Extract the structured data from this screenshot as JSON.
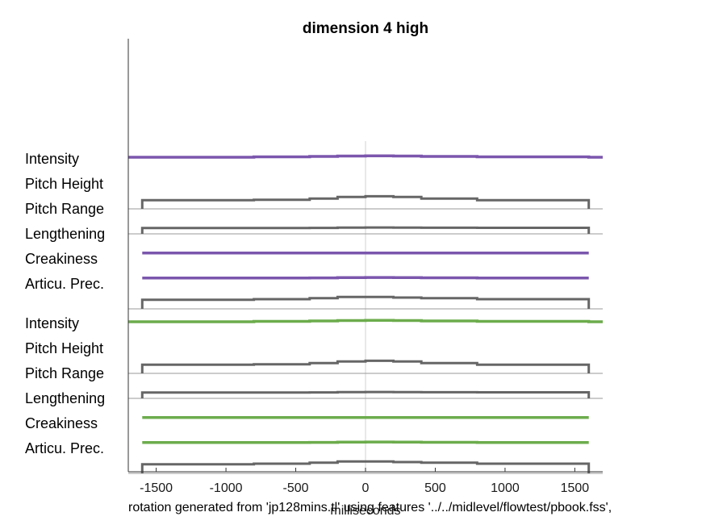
{
  "chart_data": {
    "type": "line",
    "title": "dimension  4 high",
    "xlabel": "milliseconds",
    "caption": "rotation generated from 'jp128mins.tl'  using features '../../midlevel/flowtest/pbook.fss',",
    "xlim": [
      -1700,
      1700
    ],
    "xticks": [
      -1500,
      -1000,
      -500,
      0,
      500,
      1000,
      1500
    ],
    "xtick_labels": [
      "-1500",
      "-1000",
      "-500",
      "0",
      "500",
      "1000",
      "1500"
    ],
    "grid": false,
    "colors": {
      "purple": "#7b56ad",
      "green": "#6cac4c",
      "gray": "#666666",
      "baseline": "#9a9a9a",
      "zero_line": "#d8d8d8"
    },
    "x": [
      -1600,
      -800,
      -400,
      -200,
      0,
      200,
      400,
      800,
      1600
    ],
    "groups": [
      {
        "color_key": "purple",
        "rows": [
          {
            "label": "Intensity",
            "kind": "colored",
            "values": [
              0.12,
              0.18,
              0.25,
              0.32,
              0.35,
              0.32,
              0.25,
              0.18,
              0.12
            ]
          },
          {
            "label": "Pitch Height",
            "kind": "gray",
            "values": [
              0.6,
              0.65,
              0.85,
              1.1,
              1.2,
              1.1,
              0.85,
              0.6,
              0.6
            ]
          },
          {
            "label": "Pitch Range",
            "kind": "gray",
            "values": [
              0.15,
              0.15,
              0.17,
              0.22,
              0.24,
              0.22,
              0.2,
              0.18,
              0.15
            ]
          },
          {
            "label": "Lengthening",
            "kind": "colored",
            "values": [
              0.15,
              0.15,
              0.15,
              0.16,
              0.16,
              0.16,
              0.15,
              0.15,
              0.15
            ]
          },
          {
            "label": "Creakiness",
            "kind": "colored",
            "values": [
              0.15,
              0.15,
              0.17,
              0.22,
              0.24,
              0.22,
              0.18,
              0.15,
              0.15
            ]
          },
          {
            "label": "Articu. Prec.",
            "kind": "gray",
            "values": [
              0.65,
              0.75,
              0.9,
              1.1,
              1.1,
              1.0,
              0.9,
              0.75,
              0.65
            ]
          }
        ]
      },
      {
        "color_key": "green",
        "rows": [
          {
            "label": "Intensity",
            "kind": "colored",
            "values": [
              0.12,
              0.18,
              0.25,
              0.32,
              0.35,
              0.32,
              0.25,
              0.18,
              0.12
            ]
          },
          {
            "label": "Pitch Height",
            "kind": "gray",
            "values": [
              0.6,
              0.65,
              0.85,
              1.1,
              1.2,
              1.1,
              0.85,
              0.6,
              0.6
            ]
          },
          {
            "label": "Pitch Range",
            "kind": "gray",
            "values": [
              0.15,
              0.15,
              0.17,
              0.22,
              0.24,
              0.22,
              0.2,
              0.18,
              0.15
            ]
          },
          {
            "label": "Lengthening",
            "kind": "colored",
            "values": [
              0.15,
              0.15,
              0.15,
              0.16,
              0.16,
              0.16,
              0.15,
              0.15,
              0.15
            ]
          },
          {
            "label": "Creakiness",
            "kind": "colored",
            "values": [
              0.15,
              0.15,
              0.17,
              0.22,
              0.24,
              0.22,
              0.18,
              0.15,
              0.15
            ]
          },
          {
            "label": "Articu. Prec.",
            "kind": "gray",
            "values": [
              0.65,
              0.75,
              0.9,
              1.1,
              1.1,
              1.0,
              0.9,
              0.75,
              0.65
            ]
          }
        ]
      }
    ]
  }
}
